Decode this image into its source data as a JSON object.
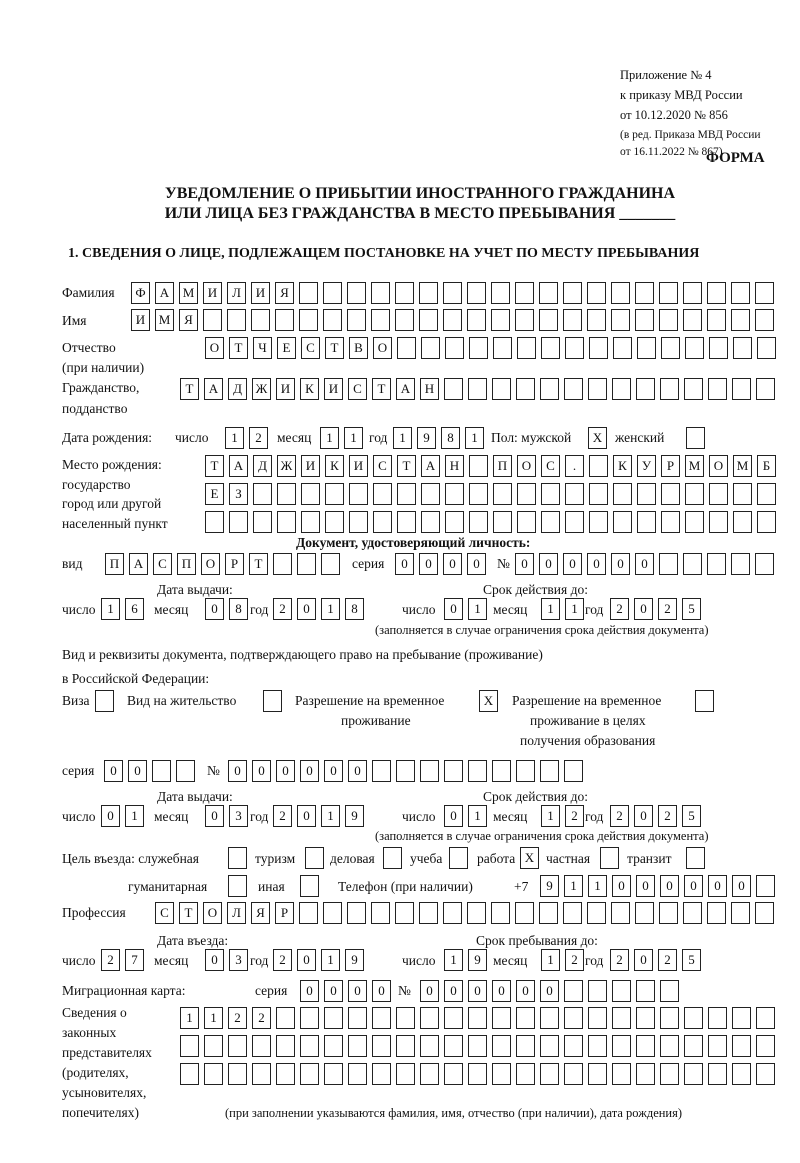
{
  "header": {
    "line1": "Приложение № 4",
    "line2": "к приказу МВД России",
    "line3": "от 10.12.2020 № 856",
    "line4": "(в ред. Приказа МВД России",
    "line5": "от 16.11.2022 № 867)",
    "form_label": "ФОРМА"
  },
  "title": {
    "line1": "УВЕДОМЛЕНИЕ О ПРИБЫТИИ ИНОСТРАННОГО ГРАЖДАНИНА",
    "line2": "ИЛИ ЛИЦА БЕЗ ГРАЖДАНСТВА В МЕСТО ПРЕБЫВАНИЯ _______"
  },
  "section1": {
    "heading": "1. СВЕДЕНИЯ О ЛИЦЕ, ПОДЛЕЖАЩЕМ ПОСТАНОВКЕ НА УЧЕТ ПО МЕСТУ ПРЕБЫВАНИЯ",
    "labels": {
      "surname": "Фамилия",
      "name": "Имя",
      "patronymic": "Отчество",
      "patronymic2": "(при наличии)",
      "citizenship": "Гражданство,",
      "citizenship2": "подданство",
      "birth_date": "Дата рождения:",
      "day": "число",
      "month": "месяц",
      "year": "год",
      "sex": "Пол: мужской",
      "female": "женский",
      "birthplace1": "Место рождения:",
      "birthplace2": "государство",
      "birthplace3": "город или другой",
      "birthplace4": "населенный пункт",
      "id_doc": "Документ, удостоверяющий личность:",
      "kind": "вид",
      "series": "серия",
      "number": "№",
      "issue_date": "Дата выдачи:",
      "valid_until": "Срок действия до:",
      "validity_note": "(заполняется в случае ограничения срока действия документа)",
      "right_doc1": "Вид и реквизиты документа, подтверждающего право на пребывание (проживание)",
      "right_doc2": "в Российской Федерации:",
      "visa": "Виза",
      "residence": "Вид на жительство",
      "temp1": "Разрешение на временное",
      "temp2": "проживание",
      "edu1": "Разрешение на временное",
      "edu2": "проживание в целях",
      "edu3": "получения образования",
      "purpose": "Цель въезда: служебная",
      "tourism": "туризм",
      "business": "деловая",
      "study": "учеба",
      "work": "работа",
      "private": "частная",
      "transit": "транзит",
      "humanitarian": "гуманитарная",
      "other": "иная",
      "phone": "Телефон (при наличии)",
      "phone_prefix": "+7",
      "profession": "Профессия",
      "entry_date": "Дата въезда:",
      "stay_until": "Срок пребывания до:",
      "migration_card": "Миграционная карта:",
      "reps1": "Сведения о",
      "reps2": "законных",
      "reps3": "представителях",
      "reps4": "(родителях,",
      "reps5": "усыновителях,",
      "reps6": "попечителях)",
      "reps_note": "(при заполнении указываются фамилия, имя, отчество (при наличии), дата рождения)"
    },
    "values": {
      "surname": "ФАМИЛИЯ",
      "name": "ИМЯ",
      "patronymic": "ОТЧЕСТВО",
      "citizenship": "ТАДЖИКИСТАН",
      "birth_day": "12",
      "birth_month": "11",
      "birth_year": "1981",
      "sex_male": "X",
      "sex_female": "",
      "birthplace_line1": "ТАДЖИКИСТАН ПОС. КУРМОМБ",
      "birthplace_line2": "ЕЗ",
      "birthplace_line3": "",
      "doc_kind": "ПАСПОРТ",
      "doc_series": "0000",
      "doc_number": "000000",
      "doc_issue_day": "16",
      "doc_issue_month": "08",
      "doc_issue_year": "2018",
      "doc_valid_day": "01",
      "doc_valid_month": "11",
      "doc_valid_year": "2025",
      "visa": "",
      "residence_permit": "",
      "temp_residence": "X",
      "temp_residence_edu": "",
      "right_series": "00",
      "right_number": "000000",
      "right_issue_day": "01",
      "right_issue_month": "03",
      "right_issue_year": "2019",
      "right_valid_day": "01",
      "right_valid_month": "12",
      "right_valid_year": "2025",
      "purpose_official": "",
      "purpose_tourism": "",
      "purpose_business": "",
      "purpose_study": "",
      "purpose_work": "X",
      "purpose_private": "",
      "purpose_transit": "",
      "purpose_humanitarian": "",
      "purpose_other": "",
      "phone": "911000000",
      "profession": "СТОЛЯР",
      "entry_day": "27",
      "entry_month": "03",
      "entry_year": "2019",
      "stay_day": "19",
      "stay_month": "12",
      "stay_year": "2025",
      "mc_series": "0000",
      "mc_number": "000000",
      "reps_line1": "1122",
      "reps_line2": "",
      "reps_line3": ""
    }
  }
}
